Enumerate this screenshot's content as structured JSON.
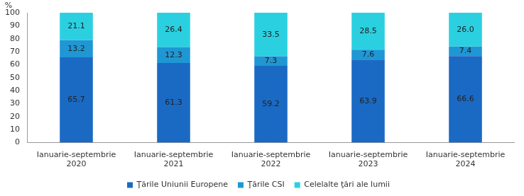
{
  "chart_data": {
    "type": "bar",
    "stacked": true,
    "data_labels": true,
    "grid": false,
    "legend": "bottom",
    "ylabel": "%",
    "categories": [
      "Ianuarie-septembrie 2020",
      "Ianuarie-septembrie 2021",
      "Ianuarie-septembrie 2022",
      "Ianuarie-septembrie 2023",
      "Ianuarie-septembrie 2024"
    ],
    "ylim": [
      0,
      100
    ],
    "yticks": [
      0,
      10,
      20,
      30,
      40,
      50,
      60,
      70,
      80,
      90,
      100
    ],
    "series": [
      {
        "name": "Ţările Uniunii Europene",
        "color": "#1a6ac4",
        "values": [
          65.7,
          61.3,
          59.2,
          63.9,
          66.6
        ]
      },
      {
        "name": "Ţările CSI",
        "color": "#1f97d4",
        "values": [
          13.2,
          12.3,
          7.3,
          7.6,
          7.4
        ]
      },
      {
        "name": "Celelalte ţări ale lumii",
        "color": "#2bd0e0",
        "values": [
          21.1,
          26.4,
          33.5,
          28.5,
          26.0
        ],
        "value_labels": [
          "21.1",
          "26.4",
          "33.5",
          "28.5",
          "26.0"
        ]
      }
    ]
  }
}
